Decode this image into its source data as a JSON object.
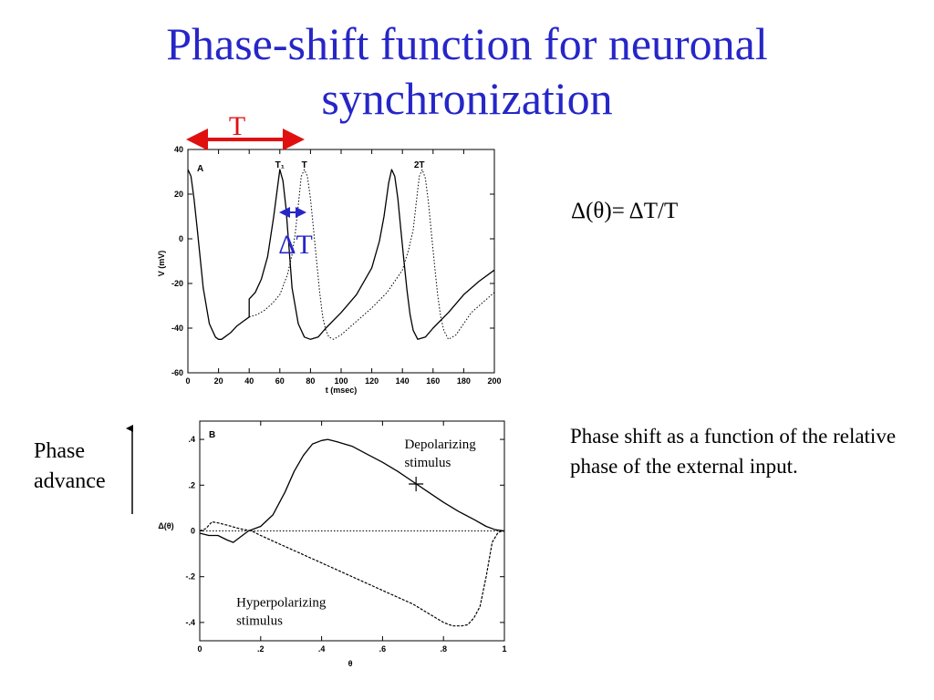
{
  "title": {
    "line1": "Phase-shift function for neuronal",
    "line2": "synchronization"
  },
  "formula": "Δ(θ)= ΔT/T",
  "caption": "Phase shift as a function of the relative phase of the external input.",
  "phase_advance": {
    "line1": "Phase",
    "line2": "advance"
  },
  "overlay": {
    "period_label": "T",
    "delta_label": "ΔT"
  },
  "colors": {
    "title": "#2626c8",
    "period_arrow": "#e01010",
    "delta_arrow": "#2626c8"
  },
  "chart_data": [
    {
      "type": "line",
      "panel_label": "A",
      "xlabel": "t (msec)",
      "ylabel": "V (mV)",
      "xlim": [
        0,
        200
      ],
      "ylim": [
        -60,
        40
      ],
      "xticks": [
        0,
        20,
        40,
        60,
        80,
        100,
        120,
        140,
        160,
        180,
        200
      ],
      "yticks": [
        -60,
        -40,
        -20,
        0,
        20,
        40
      ],
      "annotations": [
        {
          "text": "T₁",
          "x": 60
        },
        {
          "text": "T",
          "x": 76
        },
        {
          "text": "2T",
          "x": 151
        }
      ],
      "series": [
        {
          "style": "solid",
          "x": [
            0,
            2,
            4,
            6,
            10,
            14,
            18,
            20,
            22,
            24,
            28,
            32,
            36,
            40,
            40,
            44,
            48,
            52,
            56,
            60,
            62,
            64,
            66,
            68,
            72,
            76,
            80,
            85,
            90,
            100,
            110,
            120,
            125,
            128,
            131,
            133,
            135,
            137,
            139,
            141,
            143,
            145,
            147,
            150,
            155,
            160,
            170,
            180,
            190,
            200
          ],
          "y": [
            31,
            28,
            18,
            5,
            -22,
            -38,
            -44,
            -45,
            -45,
            -44,
            -42,
            -39,
            -37,
            -35,
            -27,
            -24,
            -18,
            -8,
            10,
            31,
            26,
            14,
            -4,
            -22,
            -38,
            -44,
            -45,
            -44,
            -40,
            -33,
            -25,
            -13,
            -1,
            10,
            25,
            31,
            28,
            18,
            4,
            -10,
            -23,
            -34,
            -41,
            -45,
            -44,
            -40,
            -33,
            -25,
            -19,
            -14
          ]
        },
        {
          "style": "dotted",
          "x": [
            40,
            45,
            50,
            55,
            60,
            65,
            68,
            70,
            72,
            74,
            76,
            78,
            80,
            82,
            84,
            86,
            88,
            90,
            92,
            95,
            100,
            110,
            120,
            130,
            140,
            144,
            147,
            149,
            151,
            153,
            155,
            157,
            159,
            161,
            163,
            165,
            167,
            170,
            175,
            180,
            185,
            190,
            200
          ],
          "y": [
            -35,
            -34,
            -32,
            -29,
            -25,
            -16,
            -7,
            2,
            15,
            28,
            31,
            28,
            18,
            4,
            -10,
            -24,
            -35,
            -41,
            -44,
            -45,
            -43,
            -37,
            -31,
            -24,
            -14,
            -5,
            4,
            16,
            28,
            31,
            27,
            16,
            2,
            -12,
            -25,
            -35,
            -41,
            -45,
            -43,
            -38,
            -33,
            -30,
            -24
          ]
        }
      ]
    },
    {
      "type": "line",
      "panel_label": "B",
      "xlabel": "θ",
      "ylabel": "Δ(θ)",
      "xlim": [
        0,
        1
      ],
      "ylim": [
        -0.48,
        0.48
      ],
      "xticks": [
        0,
        0.2,
        0.4,
        0.6,
        0.8,
        1
      ],
      "yticks": [
        -0.4,
        -0.2,
        0,
        0.2,
        0.4
      ],
      "annotations": [
        {
          "text": "Depolarizing",
          "line2": "stimulus",
          "x": 0.69,
          "y": 0.36
        },
        {
          "text": "Hyperpolarizing",
          "line2": "stimulus",
          "x": 0.12,
          "y": -0.33
        }
      ],
      "marker": {
        "x": 0.71,
        "y": 0.205
      },
      "series": [
        {
          "style": "dotted",
          "x": [
            0,
            1
          ],
          "y": [
            0,
            0
          ]
        },
        {
          "style": "solid",
          "x": [
            0,
            0.03,
            0.06,
            0.09,
            0.11,
            0.13,
            0.16,
            0.2,
            0.24,
            0.28,
            0.31,
            0.34,
            0.37,
            0.4,
            0.42,
            0.45,
            0.5,
            0.55,
            0.6,
            0.65,
            0.7,
            0.75,
            0.8,
            0.85,
            0.9,
            0.94,
            0.97,
            1
          ],
          "y": [
            -0.01,
            -0.02,
            -0.02,
            -0.04,
            -0.05,
            -0.03,
            0.0,
            0.02,
            0.07,
            0.17,
            0.26,
            0.33,
            0.38,
            0.395,
            0.4,
            0.39,
            0.37,
            0.335,
            0.3,
            0.26,
            0.215,
            0.17,
            0.125,
            0.085,
            0.05,
            0.02,
            0.005,
            0
          ]
        },
        {
          "style": "dashed",
          "x": [
            0,
            0.02,
            0.04,
            0.06,
            0.09,
            0.13,
            0.17,
            0.2,
            0.25,
            0.3,
            0.4,
            0.5,
            0.6,
            0.7,
            0.75,
            0.8,
            0.83,
            0.86,
            0.88,
            0.9,
            0.92,
            0.94,
            0.96,
            0.98,
            1
          ],
          "y": [
            0,
            0.01,
            0.04,
            0.035,
            0.025,
            0.01,
            0.0,
            -0.02,
            -0.05,
            -0.08,
            -0.14,
            -0.2,
            -0.26,
            -0.32,
            -0.36,
            -0.4,
            -0.415,
            -0.415,
            -0.41,
            -0.38,
            -0.33,
            -0.2,
            -0.05,
            -0.005,
            0
          ]
        }
      ]
    }
  ]
}
